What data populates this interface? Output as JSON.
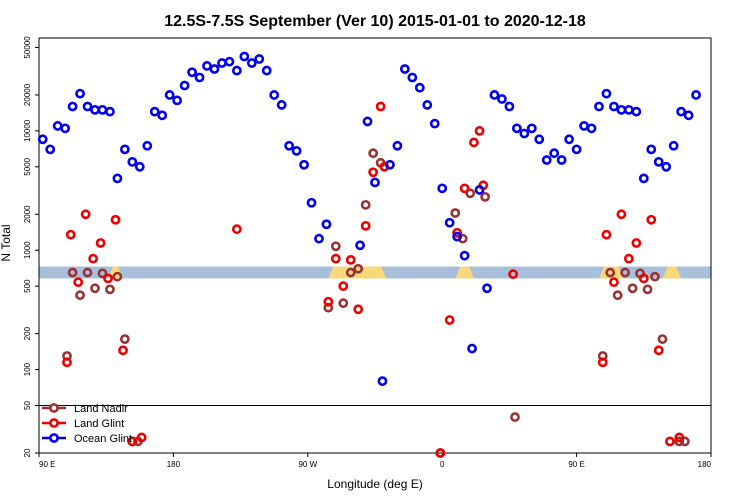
{
  "chart_data": {
    "type": "scatter",
    "title": "12.5S-7.5S September (Ver 10)   2015-01-01 to 2020-12-18",
    "xlabel": "Longitude (deg E)",
    "ylabel": "N Total",
    "y_scale": "log",
    "xlim": [
      90,
      450
    ],
    "ylim": [
      20,
      60000
    ],
    "x_ticks": [
      {
        "value": 90,
        "label": "90 E"
      },
      {
        "value": 162,
        "label": "180"
      },
      {
        "value": 234,
        "label": "90 W"
      },
      {
        "value": 306,
        "label": "0"
      },
      {
        "value": 378,
        "label": "90 E"
      },
      {
        "value": 450,
        "label": "180"
      }
    ],
    "y_ticks": [
      {
        "value": 20,
        "label": "20"
      },
      {
        "value": 50,
        "label": "50"
      },
      {
        "value": 100,
        "label": "100"
      },
      {
        "value": 200,
        "label": "200"
      },
      {
        "value": 500,
        "label": "500"
      },
      {
        "value": 1000,
        "label": "1000"
      },
      {
        "value": 2000,
        "label": "2000"
      },
      {
        "value": 5000,
        "label": "5000"
      },
      {
        "value": 10000,
        "label": "10000"
      },
      {
        "value": 20000,
        "label": "20000"
      },
      {
        "value": 50000,
        "label": "50000"
      }
    ],
    "legend_position": "bottom-left",
    "band": {
      "y_range": [
        580,
        730
      ],
      "base_color": "#a8bfdc",
      "land_color": "#f8d87a",
      "land_segments": [
        [
          127,
          135
        ],
        [
          245,
          276
        ],
        [
          313,
          323
        ],
        [
          390,
          403
        ],
        [
          424,
          434
        ]
      ]
    },
    "separator_y": 50,
    "series": [
      {
        "name": "Land Nadir",
        "color": "#993333",
        "points": [
          [
            105,
            130
          ],
          [
            108,
            650
          ],
          [
            112,
            420
          ],
          [
            116,
            650
          ],
          [
            120,
            480
          ],
          [
            124,
            640
          ],
          [
            128,
            470
          ],
          [
            132,
            600
          ],
          [
            136,
            180
          ],
          [
            140,
            25
          ],
          [
            143,
            25
          ],
          [
            245,
            330
          ],
          [
            249,
            1080
          ],
          [
            253,
            360
          ],
          [
            257,
            650
          ],
          [
            261,
            700
          ],
          [
            265,
            2400
          ],
          [
            269,
            6500
          ],
          [
            273,
            5400
          ],
          [
            305,
            20
          ],
          [
            313,
            2050
          ],
          [
            317,
            1250
          ],
          [
            321,
            3000
          ],
          [
            329,
            2800
          ],
          [
            345,
            40
          ],
          [
            392,
            130
          ],
          [
            396,
            650
          ],
          [
            400,
            420
          ],
          [
            404,
            650
          ],
          [
            408,
            480
          ],
          [
            412,
            640
          ],
          [
            416,
            470
          ],
          [
            420,
            600
          ],
          [
            424,
            180
          ],
          [
            433,
            25
          ],
          [
            436,
            25
          ]
        ]
      },
      {
        "name": "Land Glint",
        "color": "#ee0000",
        "points": [
          [
            105,
            115
          ],
          [
            107,
            1350
          ],
          [
            111,
            540
          ],
          [
            115,
            2000
          ],
          [
            119,
            850
          ],
          [
            123,
            1150
          ],
          [
            127,
            580
          ],
          [
            131,
            1800
          ],
          [
            135,
            145
          ],
          [
            140,
            25
          ],
          [
            145,
            27
          ],
          [
            196,
            1500
          ],
          [
            245,
            370
          ],
          [
            249,
            850
          ],
          [
            253,
            500
          ],
          [
            257,
            830
          ],
          [
            261,
            320
          ],
          [
            265,
            1600
          ],
          [
            269,
            4500
          ],
          [
            273,
            16000
          ],
          [
            275,
            5000
          ],
          [
            305,
            20
          ],
          [
            310,
            260
          ],
          [
            314,
            1400
          ],
          [
            318,
            3300
          ],
          [
            323,
            8000
          ],
          [
            326,
            10000
          ],
          [
            328,
            3500
          ],
          [
            344,
            630
          ],
          [
            392,
            115
          ],
          [
            394,
            1350
          ],
          [
            398,
            540
          ],
          [
            402,
            2000
          ],
          [
            406,
            850
          ],
          [
            410,
            1150
          ],
          [
            414,
            580
          ],
          [
            418,
            1800
          ],
          [
            422,
            145
          ],
          [
            428,
            25
          ],
          [
            433,
            27
          ]
        ]
      },
      {
        "name": "Ocean Glint",
        "color": "#0000ee",
        "points": [
          [
            92,
            8500
          ],
          [
            96,
            7000
          ],
          [
            100,
            11000
          ],
          [
            104,
            10500
          ],
          [
            108,
            16000
          ],
          [
            112,
            20500
          ],
          [
            116,
            16000
          ],
          [
            120,
            15000
          ],
          [
            124,
            15000
          ],
          [
            128,
            14500
          ],
          [
            132,
            4000
          ],
          [
            136,
            7000
          ],
          [
            140,
            5500
          ],
          [
            144,
            5000
          ],
          [
            148,
            7500
          ],
          [
            152,
            14500
          ],
          [
            156,
            13500
          ],
          [
            160,
            20000
          ],
          [
            164,
            18000
          ],
          [
            168,
            24000
          ],
          [
            172,
            31000
          ],
          [
            176,
            28000
          ],
          [
            180,
            35000
          ],
          [
            184,
            33000
          ],
          [
            188,
            37000
          ],
          [
            192,
            38000
          ],
          [
            196,
            32000
          ],
          [
            200,
            42000
          ],
          [
            204,
            37000
          ],
          [
            208,
            40000
          ],
          [
            212,
            32000
          ],
          [
            216,
            20000
          ],
          [
            220,
            16500
          ],
          [
            224,
            7500
          ],
          [
            228,
            6800
          ],
          [
            232,
            5200
          ],
          [
            236,
            2500
          ],
          [
            240,
            1250
          ],
          [
            244,
            1650
          ],
          [
            262,
            1100
          ],
          [
            266,
            12000
          ],
          [
            270,
            3700
          ],
          [
            274,
            80
          ],
          [
            278,
            5200
          ],
          [
            282,
            7500
          ],
          [
            286,
            33000
          ],
          [
            290,
            28000
          ],
          [
            294,
            23000
          ],
          [
            298,
            16500
          ],
          [
            302,
            11500
          ],
          [
            306,
            3300
          ],
          [
            310,
            1700
          ],
          [
            314,
            1300
          ],
          [
            318,
            900
          ],
          [
            322,
            150
          ],
          [
            326,
            3200
          ],
          [
            330,
            480
          ],
          [
            334,
            20000
          ],
          [
            338,
            18500
          ],
          [
            342,
            16000
          ],
          [
            346,
            10500
          ],
          [
            350,
            9500
          ],
          [
            354,
            10500
          ],
          [
            358,
            8500
          ],
          [
            362,
            5700
          ],
          [
            366,
            6500
          ],
          [
            370,
            5700
          ],
          [
            374,
            8500
          ],
          [
            378,
            7000
          ],
          [
            382,
            11000
          ],
          [
            386,
            10500
          ],
          [
            390,
            16000
          ],
          [
            394,
            20500
          ],
          [
            398,
            16000
          ],
          [
            402,
            15000
          ],
          [
            406,
            15000
          ],
          [
            410,
            14500
          ],
          [
            414,
            4000
          ],
          [
            418,
            7000
          ],
          [
            422,
            5500
          ],
          [
            426,
            5000
          ],
          [
            430,
            7500
          ],
          [
            434,
            14500
          ],
          [
            438,
            13500
          ],
          [
            442,
            20000
          ]
        ]
      }
    ]
  }
}
